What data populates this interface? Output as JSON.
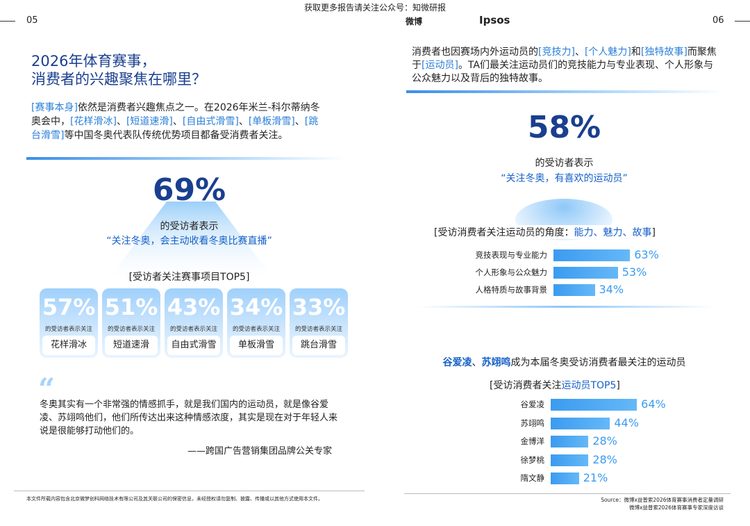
{
  "header": {
    "notice": "获取更多报告请关注公众号：知微研报",
    "left_page": "05",
    "right_page": "06",
    "logo_weibo": "微博",
    "logo_ipsos": "Ipsos"
  },
  "left": {
    "title": [
      "2026年体育赛事，",
      "消费者的兴趣聚焦在哪里？"
    ],
    "intro": [
      "[赛事本身]",
      "依然是消费者兴趣焦点之一。在2026年米兰-科尔蒂纳冬奥会中，",
      "[花样滑冰]",
      "、",
      "[短道速滑]",
      "、",
      "[自由式滑雪]",
      "、",
      "[单板滑雪]",
      "、",
      "[跳台滑雪]",
      "等中国冬奥代表队传统优势项目都备受消费者关注。"
    ],
    "stat": {
      "value": 69,
      "value_label": "69%",
      "caption": "的受访者表示",
      "quote": "“关注冬奥，会主动收看冬奥比赛直播”"
    },
    "top5": {
      "title": "[受访者关注赛事项目TOP5]",
      "caption": "的受访者表示关注",
      "items": [
        {
          "name": "花样滑冰",
          "value": 57,
          "value_label": "57%"
        },
        {
          "name": "短道速滑",
          "value": 51,
          "value_label": "51%"
        },
        {
          "name": "自由式滑雪",
          "value": 43,
          "value_label": "43%"
        },
        {
          "name": "单板滑雪",
          "value": 34,
          "value_label": "34%"
        },
        {
          "name": "跳台滑雪",
          "value": 33,
          "value_label": "33%"
        }
      ]
    },
    "quote": {
      "text": "冬奥其实有一个非常强的情感抓手，就是我们国内的运动员，就是像谷爱凌、苏翊鸣他们，他们所传达出来这种情感浓度，其实是现在对于年轻人来说是很能够打动他们的。",
      "author": "——跨国广告营销集团品牌公关专家"
    },
    "footer": "本文件所载内容包含北京微梦创科网络技术有限公司及其关联公司的保密信息，未经授权请勿复制、披露、传播或以其他方式使用本文件。"
  },
  "right": {
    "intro": [
      "消费者也因赛场内外运动员的",
      "[竞技力]",
      "、",
      "[个人魅力]",
      "和",
      "[独特故事]",
      "而聚焦于",
      "[运动员]",
      "。TA们最关注运动员们的竞技能力与专业表现、个人形象与公众魅力以及背后的独特故事。"
    ],
    "stat": {
      "value": 58,
      "value_label": "58%",
      "caption": "的受访者表示",
      "quote": "“关注冬奥，有喜欢的运动员”"
    },
    "angles": {
      "title": [
        "[受访消费者关注运动员的角度：",
        "能力、魅力、故事",
        "]"
      ],
      "categories": [
        "竞技表现与专业能力",
        "个人形象与公众魅力",
        "人格特质与故事背景"
      ],
      "values": [
        63,
        53,
        34
      ],
      "value_labels": [
        "63%",
        "53%",
        "34%"
      ]
    },
    "headline": [
      "谷爱凌",
      "、",
      "苏翊鸣",
      "成为本届冬奥受访消费者最关注的运动员"
    ],
    "athletes": {
      "title": [
        "[受访消费者关注",
        "运动员TOP5",
        "]"
      ],
      "categories": [
        "谷爱凌",
        "苏翊鸣",
        "金博洋",
        "徐梦桃",
        "隋文静"
      ],
      "values": [
        64,
        44,
        28,
        28,
        21
      ],
      "value_labels": [
        "64%",
        "44%",
        "28%",
        "28%",
        "21%"
      ]
    },
    "source": [
      "Source：微博x益普索2026体育赛事消费者定量调研",
      "微博x益普索2026体育赛事专家深度访谈"
    ]
  }
}
